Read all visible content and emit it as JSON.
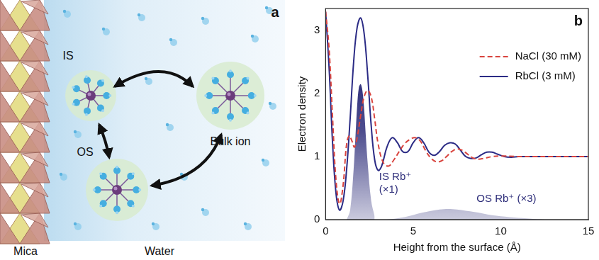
{
  "diagram": {
    "panel_label": "a",
    "nodes": [
      {
        "label": "IS"
      },
      {
        "label": "OS"
      },
      {
        "label": "Bulk ion"
      }
    ],
    "regions": [
      "Mica",
      "Water"
    ]
  },
  "chart_data": {
    "type": "line",
    "panel_label": "b",
    "x_label": "Height from the surface (Å)",
    "y_label": "Electron density",
    "xlim": [
      0,
      15
    ],
    "xticks": [
      0,
      5,
      10,
      15
    ],
    "ylim": [
      0,
      3.35
    ],
    "yticks": [
      0,
      1,
      2,
      3
    ],
    "grid": false,
    "legend": "upper right",
    "series": [
      {
        "name": "NaCl (30 mM)",
        "color": "#d9453f",
        "line_style": "dashed",
        "x": [
          0,
          0.2,
          0.4,
          0.6,
          0.8,
          1.0,
          1.2,
          1.35,
          1.5,
          1.65,
          1.8,
          2.0,
          2.2,
          2.4,
          2.6,
          2.8,
          3.0,
          3.3,
          3.6,
          3.9,
          4.2,
          4.5,
          4.8,
          5.1,
          5.4,
          5.7,
          6.0,
          6.3,
          6.6,
          6.9,
          7.2,
          7.5,
          7.8,
          8.1,
          8.4,
          8.7,
          9.0,
          9.5,
          10,
          11,
          12,
          13,
          14,
          15
        ],
        "values": [
          3.3,
          2.7,
          1.6,
          0.6,
          0.25,
          0.55,
          1.2,
          1.33,
          1.25,
          1.15,
          1.3,
          1.65,
          1.95,
          2.05,
          1.95,
          1.6,
          1.2,
          0.9,
          0.85,
          0.95,
          1.08,
          1.2,
          1.27,
          1.3,
          1.25,
          1.1,
          0.98,
          0.92,
          0.93,
          1.0,
          1.08,
          1.12,
          1.1,
          1.04,
          0.98,
          0.96,
          0.97,
          1.0,
          1.01,
          1.0,
          1.0,
          1.0,
          1.0,
          1.0
        ]
      },
      {
        "name": "RbCl (3 mM)",
        "color": "#2b2b85",
        "line_style": "solid",
        "x": [
          0,
          0.2,
          0.4,
          0.6,
          0.8,
          1.0,
          1.2,
          1.4,
          1.6,
          1.8,
          2.0,
          2.2,
          2.4,
          2.6,
          2.8,
          3.0,
          3.2,
          3.5,
          3.8,
          4.1,
          4.4,
          4.7,
          5.0,
          5.3,
          5.6,
          5.9,
          6.2,
          6.5,
          6.8,
          7.1,
          7.4,
          7.7,
          8.0,
          8.3,
          8.6,
          8.9,
          9.2,
          9.5,
          9.8,
          10.2,
          10.6,
          11,
          12,
          13,
          14,
          15
        ],
        "values": [
          3.3,
          2.4,
          1.2,
          0.4,
          0.15,
          0.3,
          0.8,
          1.6,
          2.5,
          3.05,
          3.2,
          2.95,
          2.3,
          1.5,
          0.95,
          0.78,
          0.85,
          1.15,
          1.3,
          1.22,
          1.08,
          1.08,
          1.22,
          1.3,
          1.22,
          1.07,
          1.02,
          1.08,
          1.18,
          1.22,
          1.2,
          1.1,
          1.0,
          0.97,
          0.98,
          1.03,
          1.07,
          1.07,
          1.04,
          1.0,
          0.99,
          1.0,
          1.0,
          1.0,
          1.0,
          1.0
        ]
      },
      {
        "name": "IS Rb⁺ (×1)",
        "type": "area",
        "color": "#2e2e7a",
        "x": [
          1.2,
          1.4,
          1.6,
          1.7,
          1.8,
          1.9,
          2.0,
          2.1,
          2.2,
          2.3,
          2.4,
          2.6,
          2.8
        ],
        "values": [
          0,
          0.15,
          0.8,
          1.3,
          1.8,
          2.1,
          2.15,
          2.05,
          1.75,
          1.3,
          0.9,
          0.3,
          0.05
        ]
      },
      {
        "name": "OS Rb⁺ (×3)",
        "type": "area",
        "color": "#2e2e7a",
        "x": [
          3.5,
          4.5,
          5.5,
          6.5,
          7,
          7.5,
          8.5,
          9.5,
          10.5,
          11.5,
          12.5
        ],
        "values": [
          0,
          0.04,
          0.11,
          0.16,
          0.17,
          0.16,
          0.12,
          0.07,
          0.04,
          0.02,
          0.0
        ]
      }
    ]
  }
}
